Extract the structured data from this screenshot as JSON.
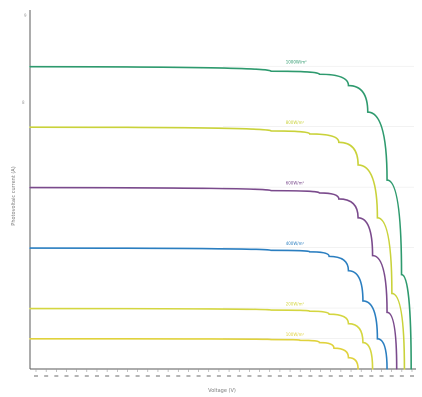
{
  "chart_data": {
    "type": "line",
    "title": "",
    "xlabel": "Voltage (V)",
    "ylabel": "Photovoltaic current (A)",
    "y_axis_top_label": "9",
    "y_axis_mid_label": "8",
    "x_ticks_count": 38,
    "grid": false,
    "colors": {
      "axis": "#5a5a5a",
      "background": "#ffffff"
    },
    "series": [
      {
        "name": "1000W/m²",
        "color": "#2e9a6e",
        "points": [
          [
            0,
            8.0
          ],
          [
            25,
            7.88
          ],
          [
            30,
            7.8
          ],
          [
            33,
            7.5
          ],
          [
            35,
            6.8
          ],
          [
            37,
            5.0
          ],
          [
            38.5,
            2.5
          ],
          [
            39.5,
            0
          ]
        ]
      },
      {
        "name": "800W/m²",
        "color": "#c9d23a",
        "points": [
          [
            0,
            6.4
          ],
          [
            25,
            6.3
          ],
          [
            29,
            6.22
          ],
          [
            32,
            6.0
          ],
          [
            34,
            5.4
          ],
          [
            36,
            4.0
          ],
          [
            37.5,
            2.0
          ],
          [
            38.8,
            0
          ]
        ]
      },
      {
        "name": "600W/m²",
        "color": "#7a4a8c",
        "points": [
          [
            0,
            4.8
          ],
          [
            25,
            4.72
          ],
          [
            30,
            4.66
          ],
          [
            32,
            4.5
          ],
          [
            34,
            4.0
          ],
          [
            35.5,
            3.0
          ],
          [
            37,
            1.5
          ],
          [
            38,
            0
          ]
        ]
      },
      {
        "name": "400W/m²",
        "color": "#2a7ec0",
        "points": [
          [
            0,
            3.2
          ],
          [
            25,
            3.14
          ],
          [
            29,
            3.1
          ],
          [
            31,
            2.98
          ],
          [
            33,
            2.6
          ],
          [
            34.5,
            1.8
          ],
          [
            36,
            0.8
          ],
          [
            37,
            0
          ]
        ]
      },
      {
        "name": "200W/m²",
        "color": "#d4d640",
        "points": [
          [
            0,
            1.6
          ],
          [
            25,
            1.56
          ],
          [
            29,
            1.53
          ],
          [
            31,
            1.45
          ],
          [
            33,
            1.2
          ],
          [
            34.5,
            0.7
          ],
          [
            35.5,
            0
          ]
        ]
      },
      {
        "name": "100W/m²",
        "color": "#e0d23c",
        "points": [
          [
            0,
            0.8
          ],
          [
            25,
            0.78
          ],
          [
            28,
            0.76
          ],
          [
            30,
            0.7
          ],
          [
            31.5,
            0.55
          ],
          [
            33,
            0.3
          ],
          [
            34,
            0
          ]
        ]
      }
    ],
    "xlim": [
      0,
      40
    ],
    "ylim": [
      0,
      9.5
    ]
  }
}
